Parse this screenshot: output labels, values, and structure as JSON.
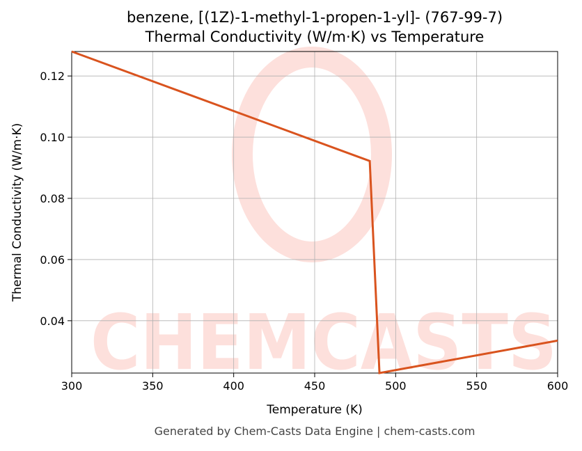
{
  "chart_data": {
    "type": "line",
    "title": [
      "benzene, [(1Z)-1-methyl-1-propen-1-yl]- (767-99-7)",
      "Thermal Conductivity (W/m·K) vs Temperature"
    ],
    "x_label": "Temperature (K)",
    "y_label": "Thermal Conductivity (W/m·K)",
    "watermark": "CHEMCASTS",
    "footer": "Generated by Chem-Casts Data Engine | chem-casts.com",
    "x": [
      300,
      484,
      490,
      600
    ],
    "series": [
      {
        "name": "Thermal Conductivity",
        "color": "#d9531e",
        "values": [
          0.128,
          0.0922,
          0.0229,
          0.0335
        ]
      }
    ],
    "xlim": [
      300,
      600
    ],
    "xticks": [
      300,
      350,
      400,
      450,
      500,
      550,
      600
    ],
    "ylim": [
      0.0229,
      0.128
    ],
    "yticks": [
      0.04,
      0.06,
      0.08,
      {
        "value": 0.1,
        "label": "0.10"
      },
      0.12
    ],
    "grid": true
  }
}
